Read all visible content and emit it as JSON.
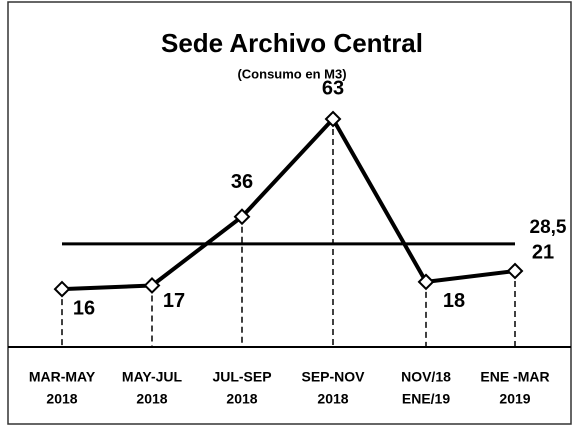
{
  "chart_data": {
    "type": "line",
    "title": "Sede Archivo Central",
    "subtitle": "(Consumo en M3)",
    "categories": [
      [
        "MAR-MAY",
        "2018"
      ],
      [
        "MAY-JUL",
        "2018"
      ],
      [
        "JUL-SEP",
        "2018"
      ],
      [
        "SEP-NOV",
        "2018"
      ],
      [
        "NOV/18",
        "ENE/19"
      ],
      [
        "ENE -MAR",
        "2019"
      ]
    ],
    "series": [
      {
        "name": "Consumo",
        "color": "#000000",
        "values": [
          16,
          17,
          36,
          63,
          18,
          21
        ]
      }
    ],
    "reference_line": {
      "value": 28.5,
      "label": "28,5"
    }
  }
}
